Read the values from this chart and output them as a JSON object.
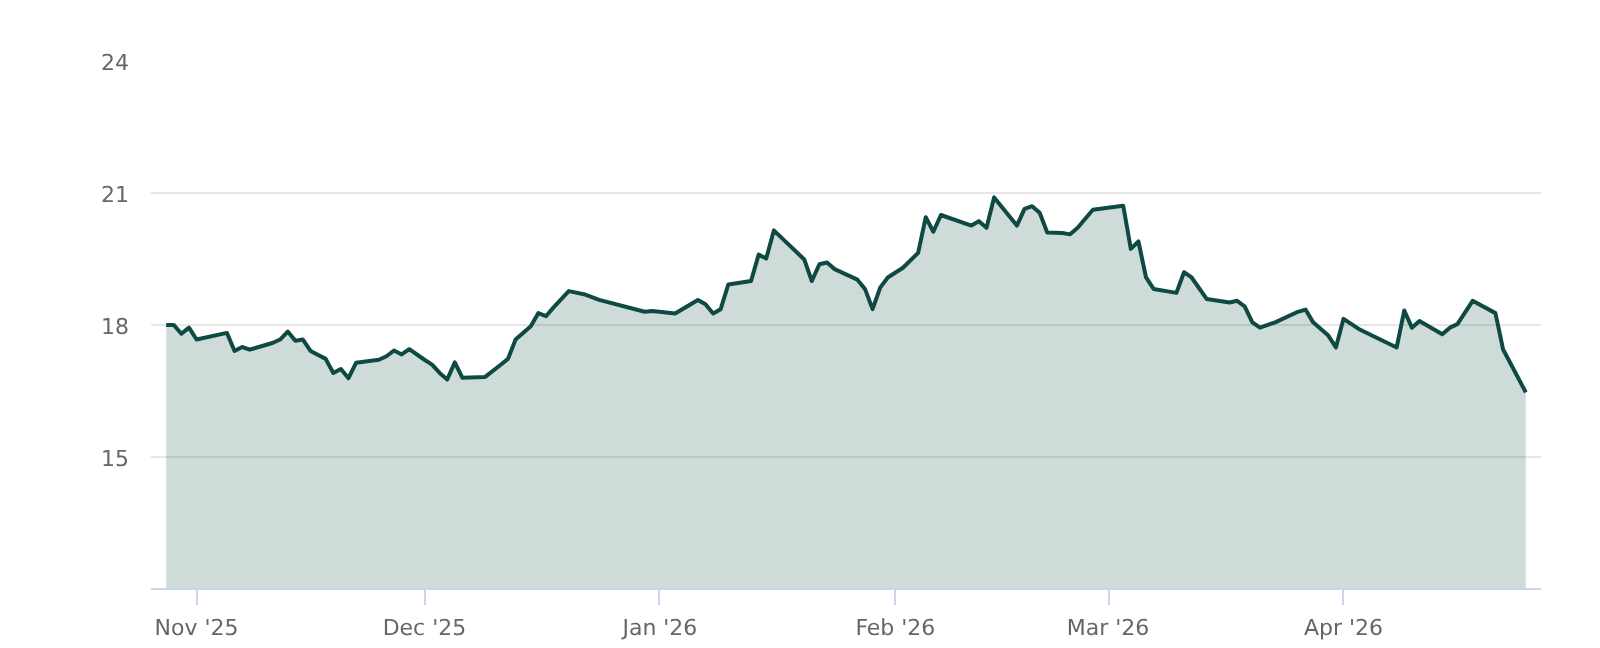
{
  "chart_data": {
    "type": "area",
    "x": [
      "2025-10-28",
      "2025-10-29",
      "2025-10-30",
      "2025-10-31",
      "2025-11-01",
      "2025-11-05",
      "2025-11-06",
      "2025-11-07",
      "2025-11-08",
      "2025-11-11",
      "2025-11-12",
      "2025-11-13",
      "2025-11-14",
      "2025-11-15",
      "2025-11-16",
      "2025-11-18",
      "2025-11-19",
      "2025-11-20",
      "2025-11-21",
      "2025-11-22",
      "2025-11-25",
      "2025-11-26",
      "2025-11-27",
      "2025-11-28",
      "2025-11-29",
      "2025-12-01",
      "2025-12-02",
      "2025-12-03",
      "2025-12-04",
      "2025-12-05",
      "2025-12-06",
      "2025-12-09",
      "2025-12-11",
      "2025-12-12",
      "2025-12-13",
      "2025-12-15",
      "2025-12-16",
      "2025-12-17",
      "2025-12-18",
      "2025-12-20",
      "2025-12-22",
      "2025-12-24",
      "2025-12-30",
      "2025-12-31",
      "2026-01-03",
      "2026-01-06",
      "2026-01-07",
      "2026-01-08",
      "2026-01-09",
      "2026-01-10",
      "2026-01-13",
      "2026-01-14",
      "2026-01-15",
      "2026-01-16",
      "2026-01-20",
      "2026-01-21",
      "2026-01-22",
      "2026-01-23",
      "2026-01-24",
      "2026-01-27",
      "2026-01-28",
      "2026-01-29",
      "2026-01-30",
      "2026-01-31",
      "2026-02-02",
      "2026-02-04",
      "2026-02-05",
      "2026-02-06",
      "2026-02-07",
      "2026-02-11",
      "2026-02-12",
      "2026-02-13",
      "2026-02-14",
      "2026-02-17",
      "2026-02-18",
      "2026-02-19",
      "2026-02-20",
      "2026-02-21",
      "2026-02-23",
      "2026-02-24",
      "2026-02-25",
      "2026-02-27",
      "2026-03-03",
      "2026-03-04",
      "2026-03-05",
      "2026-03-06",
      "2026-03-07",
      "2026-03-10",
      "2026-03-11",
      "2026-03-12",
      "2026-03-14",
      "2026-03-17",
      "2026-03-18",
      "2026-03-19",
      "2026-03-20",
      "2026-03-21",
      "2026-03-23",
      "2026-03-26",
      "2026-03-27",
      "2026-03-28",
      "2026-03-30",
      "2026-03-31",
      "2026-04-01",
      "2026-04-03",
      "2026-04-08",
      "2026-04-09",
      "2026-04-10",
      "2026-04-11",
      "2026-04-14",
      "2026-04-15",
      "2026-04-16",
      "2026-04-18",
      "2026-04-21",
      "2026-04-22",
      "2026-04-25"
    ],
    "series": [
      {
        "color": "#0e4a43",
        "values": [
          18.0,
          18.0,
          17.8,
          17.94,
          17.67,
          17.82,
          17.41,
          17.5,
          17.44,
          17.59,
          17.67,
          17.85,
          17.64,
          17.67,
          17.41,
          17.23,
          16.91,
          17.0,
          16.79,
          17.14,
          17.21,
          17.29,
          17.42,
          17.33,
          17.45,
          17.21,
          17.1,
          16.91,
          16.76,
          17.15,
          16.8,
          16.82,
          17.09,
          17.23,
          17.67,
          17.97,
          18.27,
          18.2,
          18.4,
          18.77,
          18.7,
          18.57,
          18.3,
          18.32,
          18.26,
          18.57,
          18.47,
          18.26,
          18.36,
          18.92,
          19.0,
          19.6,
          19.51,
          20.15,
          19.49,
          19.0,
          19.38,
          19.42,
          19.27,
          19.03,
          18.82,
          18.36,
          18.85,
          19.08,
          19.3,
          19.64,
          20.45,
          20.12,
          20.5,
          20.26,
          20.36,
          20.21,
          20.9,
          20.26,
          20.64,
          20.7,
          20.55,
          20.1,
          20.09,
          20.06,
          20.21,
          20.62,
          20.71,
          19.73,
          19.9,
          19.08,
          18.82,
          18.73,
          19.2,
          19.08,
          18.59,
          18.51,
          18.55,
          18.42,
          18.06,
          17.94,
          18.06,
          18.3,
          18.35,
          18.06,
          17.76,
          17.49,
          18.14,
          17.91,
          17.49,
          18.33,
          17.94,
          18.09,
          17.79,
          17.94,
          18.02,
          18.55,
          18.27,
          17.45,
          16.47
        ]
      }
    ],
    "xlim": [
      "2025-10-26",
      "2026-04-27"
    ],
    "xticks": [
      {
        "value": "2025-11-01",
        "label": "Nov '25"
      },
      {
        "value": "2025-12-01",
        "label": "Dec '25"
      },
      {
        "value": "2026-01-01",
        "label": "Jan '26"
      },
      {
        "value": "2026-02-01",
        "label": "Feb '26"
      },
      {
        "value": "2026-03-01",
        "label": "Mar '26"
      },
      {
        "value": "2026-04-01",
        "label": "Apr '26"
      }
    ],
    "ylim": [
      12,
      24
    ],
    "yticks": [
      15,
      18,
      21,
      24
    ],
    "grid": "y"
  }
}
